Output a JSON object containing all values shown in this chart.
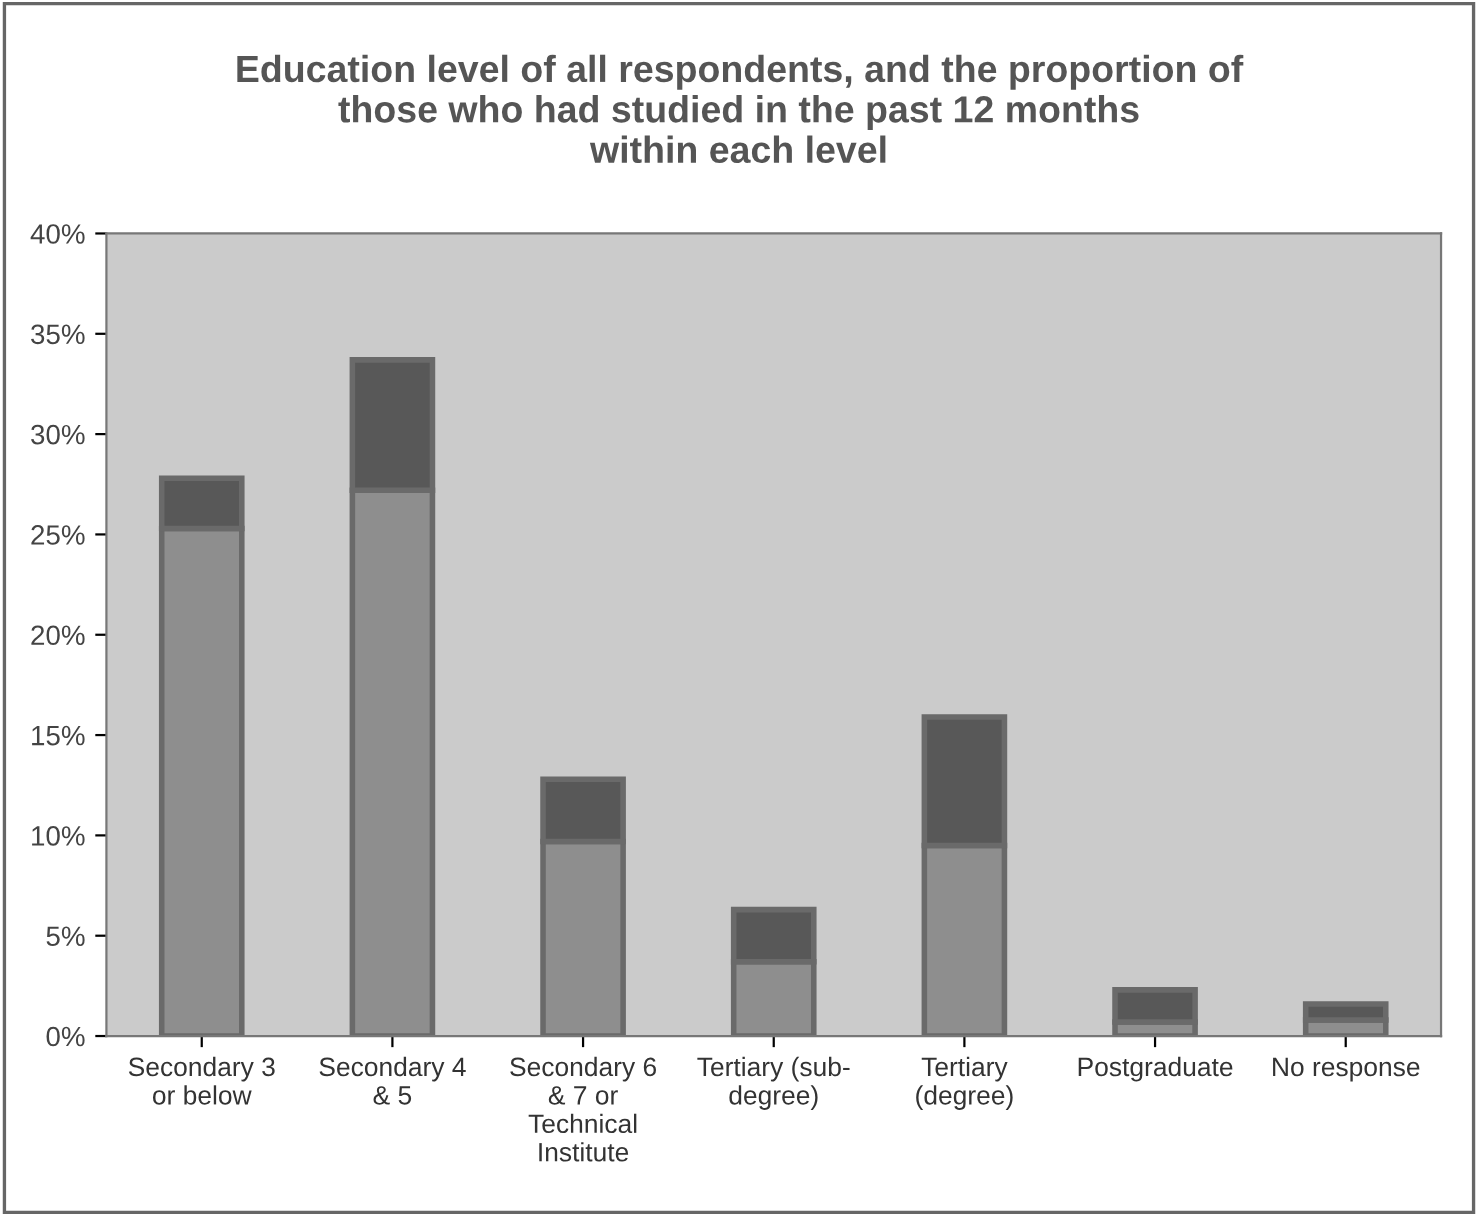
{
  "chart_data": {
    "type": "bar",
    "title": "Education level of all respondents, and the proportion of\nthose who had studied in the past 12 months\nwithin each level",
    "categories": [
      "Secondary 3\nor below",
      "Secondary 4\n& 5",
      "Secondary 6\n& 7 or\nTechnical\nInstitute",
      "Tertiary (sub-\ndegree)",
      "Tertiary\n(degree)",
      "Postgraduate",
      "No response"
    ],
    "stacked": true,
    "series": [
      {
        "color": "#8e8e8e",
        "values": [
          25.3,
          27.2,
          9.7,
          3.7,
          9.5,
          0.7,
          0.8
        ]
      },
      {
        "color": "#585858",
        "values": [
          2.5,
          6.5,
          3.1,
          2.6,
          6.4,
          1.6,
          0.8
        ]
      }
    ],
    "ylim": [
      0,
      40
    ],
    "yticks": [
      {
        "value": 0,
        "label": "0%"
      },
      {
        "value": 5,
        "label": "5%"
      },
      {
        "value": 10,
        "label": "10%"
      },
      {
        "value": 15,
        "label": "15%"
      },
      {
        "value": 20,
        "label": "20%"
      },
      {
        "value": 25,
        "label": "25%"
      },
      {
        "value": 30,
        "label": "30%"
      },
      {
        "value": 35,
        "label": "35%"
      },
      {
        "value": 40,
        "label": "40%"
      }
    ],
    "grid": false,
    "legend": false
  }
}
